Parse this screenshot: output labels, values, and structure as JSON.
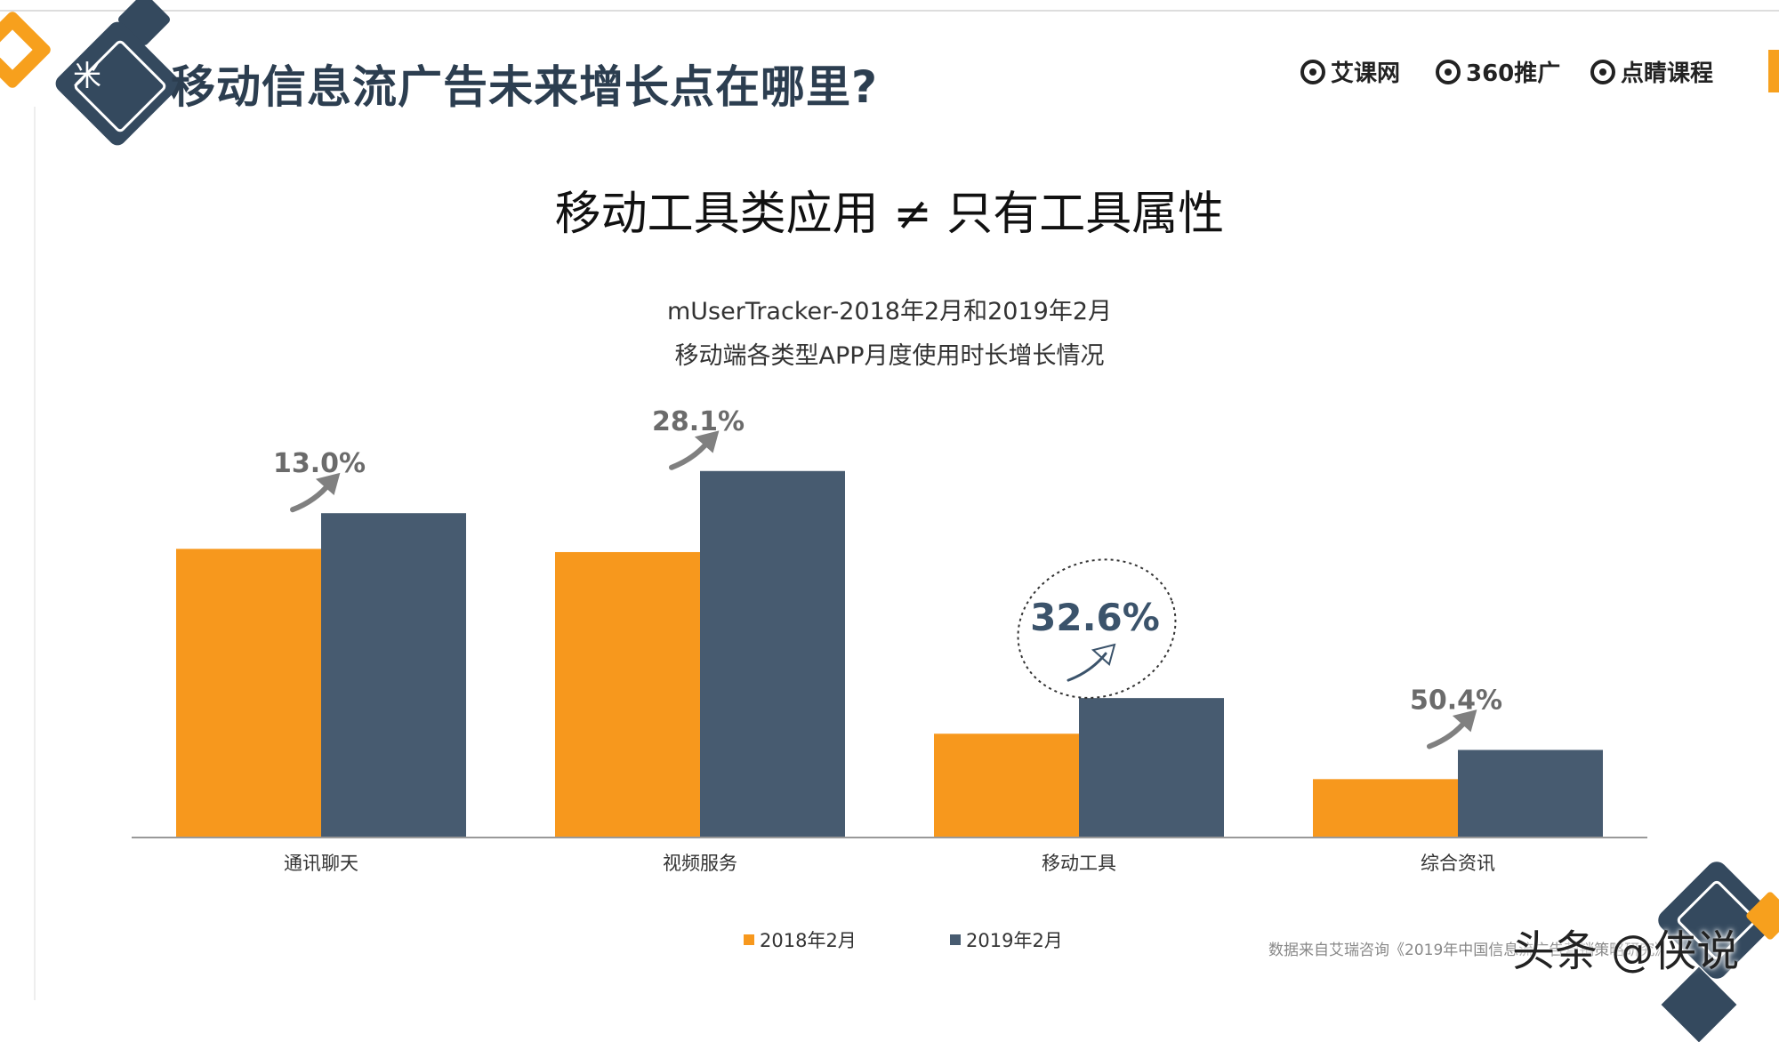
{
  "header": {
    "title": "移动信息流广告未来增长点在哪里?",
    "brand_glyph": "米",
    "logos": [
      {
        "icon": "aikewang-logo-icon",
        "label": "艾课网"
      },
      {
        "icon": "360-logo-icon",
        "label": "360推广"
      },
      {
        "icon": "eye-logo-icon",
        "label": "点睛课程"
      }
    ]
  },
  "headline": "移动工具类应用 ≠ 只有工具属性",
  "chart_data": {
    "type": "bar",
    "title": "mUserTracker-2018年2月和2019年2月",
    "subtitle": "移动端各类型APP月度使用时长增长情况",
    "categories": [
      "通讯聊天",
      "视频服务",
      "移动工具",
      "综合资讯"
    ],
    "series": [
      {
        "name": "2018年2月",
        "values": [
          89,
          88,
          32,
          18
        ],
        "color": "#f7981d"
      },
      {
        "name": "2019年2月",
        "values": [
          100,
          113,
          43,
          27
        ],
        "color": "#475b70"
      }
    ],
    "growth_labels": [
      "13.0%",
      "28.1%",
      "32.6%",
      "50.4%"
    ],
    "highlight_index": 2,
    "ylim": [
      0,
      125
    ],
    "legend_position": "bottom",
    "grid": false
  },
  "source_note": "数据来自艾瑞咨询《2019年中国信息流广告营销策略研究》",
  "watermark": "头条 @侠说"
}
